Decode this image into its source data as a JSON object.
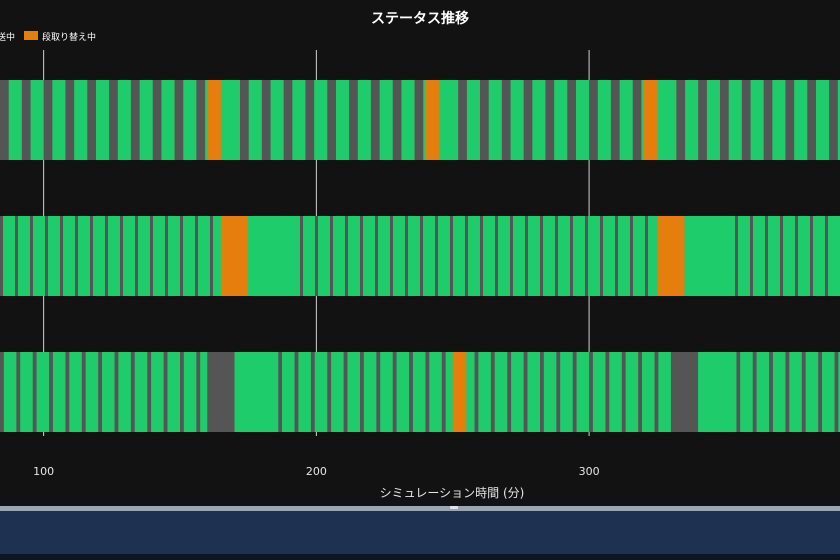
{
  "chart_data": {
    "type": "timeline",
    "title": "ステータス推移",
    "xlabel": "シミュレーション時間 (分)",
    "ylabel": "",
    "xlim": [
      84,
      392
    ],
    "xticks": [
      100,
      200,
      300
    ],
    "legend": [
      {
        "label": "搬送中",
        "label_visible": "送中",
        "color": "#555555"
      },
      {
        "label": "段取り替え中",
        "color": "#e67e0e"
      }
    ],
    "running_color": "#1fcc6b",
    "idle_color": "#555555",
    "setup_color": "#e67e0e",
    "lanes": [
      {
        "pitch": 8,
        "gray_width": 3.2,
        "start": 84,
        "setups": [
          [
            160,
            165
          ],
          [
            240,
            245
          ],
          [
            320,
            325
          ]
        ],
        "long_runs": []
      },
      {
        "pitch": 5.5,
        "gray_width": 1.1,
        "start": 84,
        "setups": [
          [
            165,
            175
          ],
          [
            325,
            335
          ]
        ],
        "long_runs": [
          [
            175,
            190
          ],
          [
            335,
            350
          ]
        ]
      },
      {
        "pitch": 6,
        "gray_width": 1.4,
        "start": 84,
        "setups": [
          [
            250,
            255
          ]
        ],
        "long_runs": [
          [
            160,
            170,
            "idle"
          ],
          [
            170,
            186
          ],
          [
            330,
            340,
            "idle"
          ],
          [
            340,
            354
          ]
        ]
      }
    ]
  }
}
